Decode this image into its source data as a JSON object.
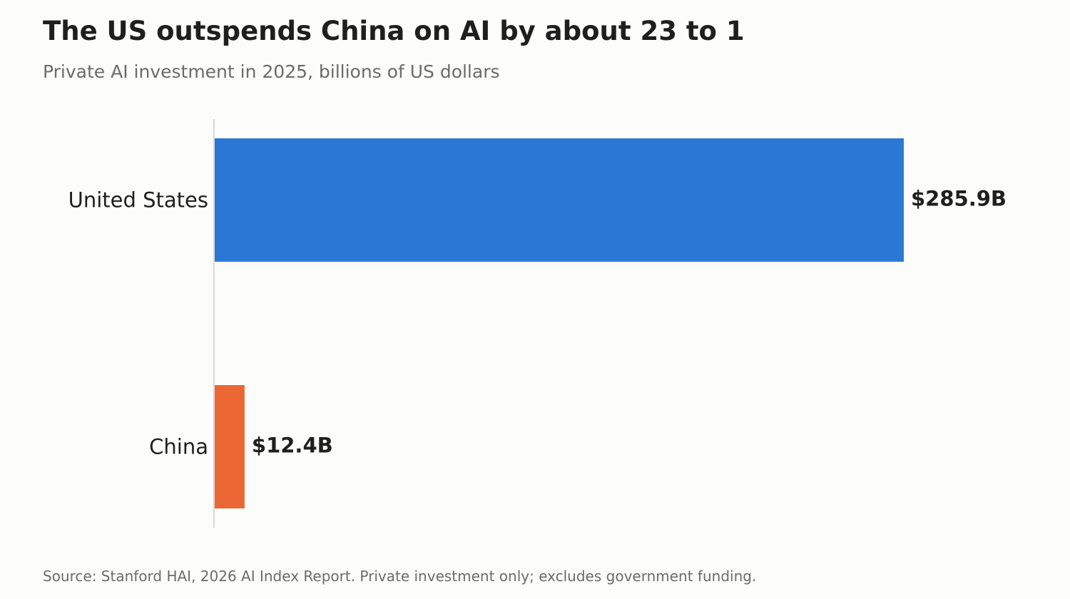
{
  "chart_data": {
    "type": "bar",
    "orientation": "horizontal",
    "title": "The US outspends China on AI by about 23 to 1",
    "subtitle": "Private AI investment in 2025, billions of US dollars",
    "categories": [
      "United States",
      "China"
    ],
    "values": [
      285.9,
      12.4
    ],
    "value_labels": [
      "$285.9B",
      "$12.4B"
    ],
    "colors": [
      "#2a78d6",
      "#eb6834"
    ],
    "xlim": [
      0,
      285.9
    ],
    "grid": false,
    "legend": "none",
    "source": "Source: Stanford HAI, 2026 AI Index Report. Private investment only; excludes government funding."
  }
}
